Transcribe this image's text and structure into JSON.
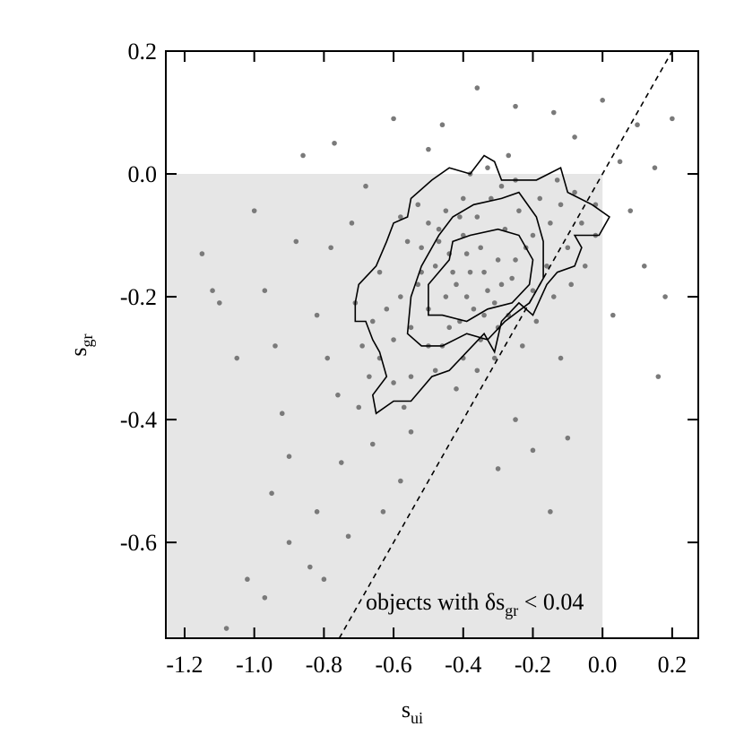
{
  "chart_data": {
    "type": "scatter",
    "xlabel": "s",
    "xlabel_sub": "ui",
    "ylabel": "s",
    "ylabel_sub": "gr",
    "annotation": {
      "text": "objects with δs",
      "sub": "gr",
      "tail": " < 0.04"
    },
    "xlim": [
      -1.254,
      0.275
    ],
    "ylim": [
      -0.756,
      0.2
    ],
    "xticks": [
      -1.2,
      {
        "value": -1.0,
        "label": "-1.0"
      },
      -0.8,
      -0.6,
      -0.4,
      -0.2,
      {
        "value": 0,
        "label": "0.0"
      },
      0.2
    ],
    "yticks": [
      -0.6,
      -0.4,
      -0.2,
      {
        "value": 0,
        "label": "0.0"
      },
      0.2
    ],
    "shaded_region": {
      "xmax": 0,
      "ymax": 0,
      "color": "#e6e6e6"
    },
    "reference_line": {
      "slope": 1,
      "intercept": 0
    },
    "series": [
      {
        "color": "#7a7a7a",
        "x": [
          -1.15,
          -1.12,
          -1.1,
          -1.08,
          -1.02,
          -0.97,
          -1.0,
          -0.97,
          -0.95,
          -0.92,
          -0.9,
          -0.88,
          -0.86,
          -0.84,
          -0.82,
          -0.8,
          -0.79,
          -0.77,
          -0.75,
          -0.73,
          -0.71,
          -0.7,
          -0.68,
          -0.66,
          -0.63,
          -0.6,
          -0.58,
          -0.55,
          -0.5,
          -0.46,
          -0.36,
          -0.25,
          -0.14,
          -0.08,
          0.0,
          0.05,
          0.1,
          0.15,
          0.2,
          0.18,
          0.16,
          0.12,
          0.08,
          0.03,
          -0.02,
          -0.1,
          -0.12,
          -0.15,
          -0.2,
          -0.25,
          -0.3,
          -0.82,
          -0.94,
          -1.05,
          -0.9,
          -0.76,
          -0.78,
          -0.72,
          -0.69,
          -0.64,
          -0.38,
          -0.42,
          -0.35,
          -0.45,
          -0.3,
          -0.4,
          -0.33,
          -0.48,
          -0.37,
          -0.28,
          -0.5,
          -0.44,
          -0.26,
          -0.36,
          -0.41,
          -0.31,
          -0.47,
          -0.39,
          -0.34,
          -0.43,
          -0.22,
          -0.53,
          -0.55,
          -0.52,
          -0.24,
          -0.2,
          -0.18,
          -0.15,
          -0.12,
          -0.58,
          -0.6,
          -0.62,
          -0.46,
          -0.4,
          -0.35,
          -0.3,
          -0.27,
          -0.32,
          -0.29,
          -0.4,
          -0.45,
          -0.5,
          -0.56,
          -0.38,
          -0.33,
          -0.25,
          -0.2,
          -0.16,
          -0.1,
          -0.06,
          -0.02,
          -0.48,
          -0.42,
          -0.55,
          -0.5,
          -0.64,
          -0.66,
          -0.36,
          -0.31,
          -0.23,
          -0.19,
          -0.14,
          -0.09,
          -0.05,
          -0.6,
          -0.57,
          -0.67,
          -0.53,
          -0.58,
          -0.27,
          -0.13,
          -0.08,
          -0.44,
          -0.39,
          -0.34,
          -0.29,
          -0.25,
          -0.41,
          -0.47,
          -0.52
        ],
        "y": [
          -0.13,
          -0.19,
          -0.21,
          -0.74,
          -0.66,
          -0.69,
          -0.06,
          -0.19,
          -0.52,
          -0.39,
          -0.6,
          -0.11,
          0.03,
          -0.64,
          -0.55,
          -0.66,
          -0.3,
          0.05,
          -0.47,
          -0.59,
          -0.21,
          -0.38,
          -0.02,
          -0.44,
          -0.55,
          0.09,
          -0.5,
          -0.42,
          0.04,
          0.08,
          0.14,
          0.11,
          0.1,
          0.06,
          0.12,
          0.02,
          0.08,
          0.01,
          0.09,
          -0.2,
          -0.33,
          -0.15,
          -0.06,
          -0.23,
          -0.1,
          -0.43,
          -0.3,
          -0.55,
          -0.45,
          -0.4,
          -0.48,
          -0.23,
          -0.28,
          -0.3,
          -0.46,
          -0.36,
          -0.12,
          -0.08,
          -0.28,
          -0.3,
          -0.16,
          -0.18,
          -0.12,
          -0.2,
          -0.14,
          -0.1,
          -0.19,
          -0.15,
          -0.22,
          -0.09,
          -0.22,
          -0.13,
          -0.17,
          -0.07,
          -0.24,
          -0.21,
          -0.09,
          -0.13,
          -0.16,
          -0.16,
          -0.12,
          -0.18,
          -0.25,
          -0.12,
          -0.06,
          -0.1,
          -0.04,
          -0.08,
          -0.05,
          -0.2,
          -0.27,
          -0.22,
          -0.28,
          -0.3,
          -0.27,
          -0.25,
          -0.23,
          -0.04,
          -0.02,
          -0.04,
          -0.06,
          -0.08,
          -0.11,
          0.0,
          0.01,
          -0.01,
          -0.19,
          -0.15,
          -0.12,
          -0.08,
          -0.05,
          -0.32,
          -0.35,
          -0.33,
          -0.28,
          -0.16,
          -0.24,
          -0.32,
          -0.3,
          -0.28,
          -0.24,
          -0.2,
          -0.18,
          -0.15,
          -0.34,
          -0.38,
          -0.33,
          -0.05,
          -0.07,
          0.03,
          -0.01,
          -0.03,
          -0.25,
          -0.2,
          -0.23,
          -0.18,
          -0.14,
          -0.07,
          -0.11,
          -0.16
        ]
      }
    ],
    "contours": [
      {
        "x": [
          -0.71,
          -0.7,
          -0.65,
          -0.62,
          -0.6,
          -0.56,
          -0.55,
          -0.49,
          -0.44,
          -0.38,
          -0.34,
          -0.31,
          -0.29,
          -0.19,
          -0.12,
          -0.1,
          -0.03,
          0.02,
          -0.01,
          -0.08,
          -0.06,
          -0.08,
          -0.13,
          -0.16,
          -0.2,
          -0.24,
          -0.29,
          -0.31,
          -0.34,
          -0.39,
          -0.44,
          -0.49,
          -0.55,
          -0.6,
          -0.65,
          -0.66,
          -0.62,
          -0.64,
          -0.66,
          -0.68,
          -0.71
        ],
        "y": [
          -0.21,
          -0.18,
          -0.15,
          -0.11,
          -0.08,
          -0.07,
          -0.04,
          -0.01,
          0.01,
          0.0,
          0.03,
          0.02,
          -0.01,
          -0.01,
          0.01,
          -0.03,
          -0.05,
          -0.07,
          -0.1,
          -0.1,
          -0.12,
          -0.15,
          -0.16,
          -0.18,
          -0.23,
          -0.21,
          -0.24,
          -0.29,
          -0.26,
          -0.29,
          -0.32,
          -0.33,
          -0.37,
          -0.37,
          -0.39,
          -0.36,
          -0.33,
          -0.29,
          -0.27,
          -0.24,
          -0.24
        ]
      },
      {
        "x": [
          -0.56,
          -0.55,
          -0.52,
          -0.47,
          -0.43,
          -0.37,
          -0.29,
          -0.24,
          -0.19,
          -0.17,
          -0.17,
          -0.21,
          -0.28,
          -0.33,
          -0.39,
          -0.46,
          -0.52
        ],
        "y": [
          -0.26,
          -0.2,
          -0.15,
          -0.1,
          -0.07,
          -0.05,
          -0.04,
          -0.03,
          -0.07,
          -0.11,
          -0.17,
          -0.21,
          -0.24,
          -0.27,
          -0.26,
          -0.28,
          -0.28
        ]
      },
      {
        "x": [
          -0.5,
          -0.5,
          -0.44,
          -0.43,
          -0.38,
          -0.3,
          -0.24,
          -0.2,
          -0.21,
          -0.26,
          -0.33,
          -0.39,
          -0.46
        ],
        "y": [
          -0.23,
          -0.18,
          -0.14,
          -0.11,
          -0.1,
          -0.09,
          -0.1,
          -0.14,
          -0.18,
          -0.21,
          -0.22,
          -0.24,
          -0.23
        ]
      }
    ]
  }
}
